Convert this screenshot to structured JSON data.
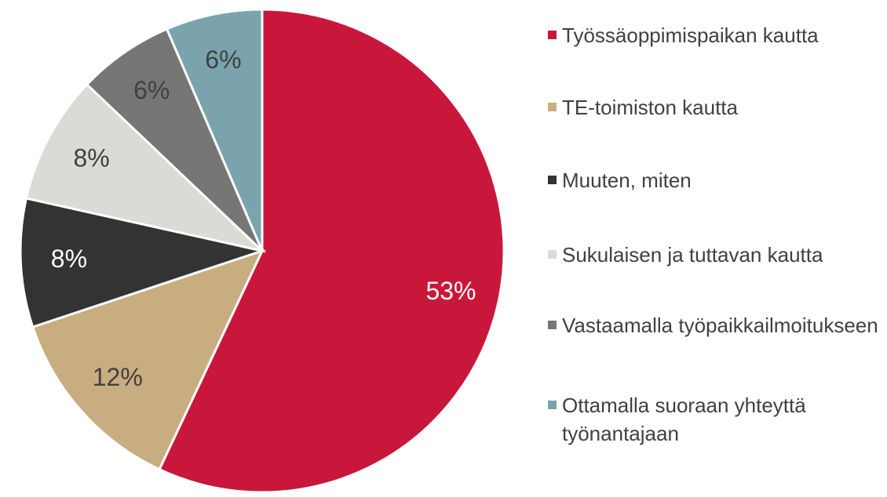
{
  "chart_data": {
    "type": "pie",
    "categories": [
      "Työssäoppimispaikan kautta",
      "TE-toimiston kautta",
      "Muuten, miten",
      "Sukulaisen ja tuttavan kautta",
      "Vastaamalla työpaikkailmoitukseen",
      "Ottamalla suoraan yhteyttä työnantajaan"
    ],
    "values": [
      53,
      12,
      8,
      8,
      6,
      6
    ],
    "value_labels": [
      "53%",
      "12%",
      "8%",
      "8%",
      "6%",
      "6%"
    ],
    "colors": [
      "#c8173a",
      "#c8ad80",
      "#333333",
      "#dcdad4",
      "#767676",
      "#7aa3ad"
    ],
    "legend": "right"
  }
}
